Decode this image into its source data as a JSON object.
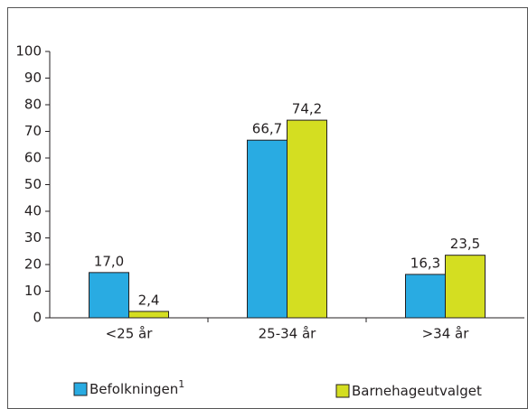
{
  "chart_data": {
    "type": "bar",
    "categories": [
      "<25 år",
      "25-34 år",
      ">34 år"
    ],
    "series": [
      {
        "name": "Befolkningen",
        "footnote_marker": "1",
        "color": "#29abe2",
        "values": [
          17.0,
          66.7,
          16.3
        ],
        "value_labels": [
          "17,0",
          "66,7",
          "16,3"
        ]
      },
      {
        "name": "Barnehageutvalget",
        "color": "#d4de21",
        "values": [
          2.4,
          74.2,
          23.5
        ],
        "value_labels": [
          "2,4",
          "74,2",
          "23,5"
        ]
      }
    ],
    "ylim": [
      0,
      100
    ],
    "yticks": [
      0,
      10,
      20,
      30,
      40,
      50,
      60,
      70,
      80,
      90,
      100
    ],
    "grid": false
  }
}
